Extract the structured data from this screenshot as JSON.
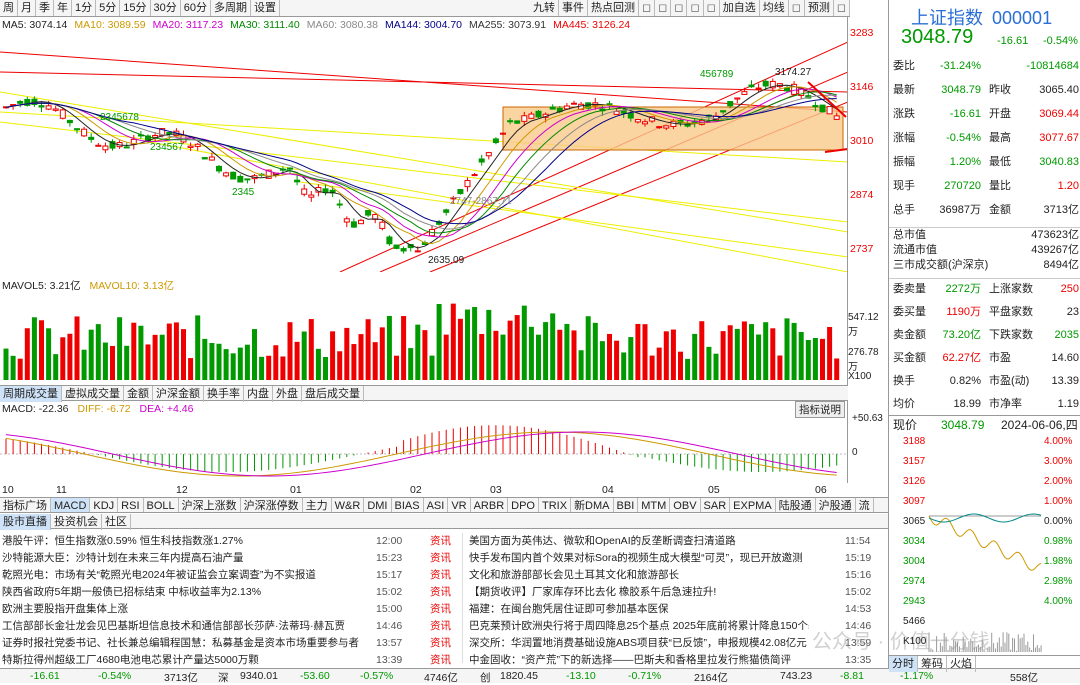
{
  "top_tabs": [
    "周",
    "月",
    "季",
    "年",
    "1分",
    "5分",
    "15分",
    "30分",
    "60分",
    "多周期",
    "设置"
  ],
  "right_tools": [
    "九转",
    "事件",
    "热点回测",
    "",
    "",
    "",
    "",
    "",
    "加自选",
    "均线",
    "",
    "预测",
    ""
  ],
  "ma_line": [
    {
      "label": "MA5: 3074.14",
      "color": "#222"
    },
    {
      "label": "MA10: 3089.59",
      "color": "#c90"
    },
    {
      "label": "MA20: 3117.23",
      "color": "#c0c"
    },
    {
      "label": "MA30: 3111.40",
      "color": "#080"
    },
    {
      "label": "MA60: 3080.38",
      "color": "#888"
    },
    {
      "label": "MA144: 3004.70",
      "color": "#008"
    },
    {
      "label": "MA255: 3073.91",
      "color": "#333"
    },
    {
      "label": "MA445: 3126.24",
      "color": "#e00"
    }
  ],
  "price_axis": [
    "3283",
    "3146",
    "3010",
    "2874",
    "2737"
  ],
  "chart_labels": {
    "high": "3174.27",
    "low": "2635.09",
    "mid": "2747-2867.71",
    "seq_labels": [
      "2345678",
      "234567",
      "3456",
      "2345",
      "456789",
      "12"
    ]
  },
  "vol_header": {
    "mavol5": "MAVOL5: 3.21亿",
    "mavol10": "MAVOL10: 3.13亿"
  },
  "vol_axis": [
    "547.12万",
    "276.78万",
    "X100"
  ],
  "ind_tabs1": [
    "周期成交量",
    "虚拟成交量",
    "金额",
    "沪深金额",
    "换手率",
    "内盘",
    "外盘",
    "盘后成交量"
  ],
  "macd_header": {
    "macd": "MACD: -22.36",
    "diff": "DIFF: -6.72",
    "dea": "DEA: +4.46",
    "btn": "指标说明"
  },
  "macd_axis": [
    "+50.63",
    "0"
  ],
  "x_labels": [
    "10",
    "11",
    "12",
    "01",
    "02",
    "03",
    "04",
    "05",
    "06"
  ],
  "ind_tabs2": [
    "指标广场",
    "MACD",
    "KDJ",
    "RSI",
    "BOLL",
    "沪深上涨数",
    "沪深涨停数",
    "主力",
    "W&R",
    "DMI",
    "BIAS",
    "ASI",
    "VR",
    "ARBR",
    "DPO",
    "TRIX",
    "新DMA",
    "BBI",
    "MTM",
    "OBV",
    "SAR",
    "EXPMA",
    "陆股通",
    "沪股通",
    "流"
  ],
  "news_tabs": [
    "股市直播",
    "投资机会",
    "社区"
  ],
  "news_left": [
    {
      "t": "港股午评：恒生指数涨0.59% 恒生科技指数涨1.27%",
      "time": "12:00",
      "tag": "资讯"
    },
    {
      "t": "沙特能源大臣：沙特计划在未来三年内提高石油产量",
      "time": "15:23",
      "tag": "资讯"
    },
    {
      "t": "乾照光电：市场有关“乾照光电2024年被证监会立案调查”为不实报道",
      "time": "15:17",
      "tag": "资讯"
    },
    {
      "t": "陕西省政府5年期一般债已招标结束 中标收益率为2.13%",
      "time": "15:02",
      "tag": "资讯"
    },
    {
      "t": "欧洲主要股指开盘集体上涨",
      "time": "15:00",
      "tag": "资讯"
    },
    {
      "t": "工信部部长金壮龙会见巴基斯坦信息技术和通信部部长莎萨·法蒂玛·赫瓦贾",
      "time": "14:46",
      "tag": "资讯"
    },
    {
      "t": "证券时报社党委书记、社长兼总编辑程国慧：私募基金是资本市场重要参与者",
      "time": "13:57",
      "tag": "资讯"
    },
    {
      "t": "特斯拉得州超级工厂4680电池电芯累计产量达5000万颗",
      "time": "13:39",
      "tag": "资讯"
    }
  ],
  "news_right": [
    {
      "t": "美国方面为英伟达、微软和OpenAI的反垄断调查扫清道路",
      "time": "11:54"
    },
    {
      "t": "快手发布国内首个效果对标Sora的视频生成大模型“可灵”，现已开放邀测",
      "time": "15:19"
    },
    {
      "t": "文化和旅游部部长会见土耳其文化和旅游部长",
      "time": "15:16"
    },
    {
      "t": "【期货收评】厂家库存环比去化 橡胶系午后急速拉升!",
      "time": "15:02"
    },
    {
      "t": "福建：在闽台胞凭居住证即可参加基本医保",
      "time": "14:53"
    },
    {
      "t": "巴克莱预计欧洲央行将于周四降息25个基点 2025年底前将累计降息150个基点",
      "time": "14:46"
    },
    {
      "t": "深交所：华润置地消费基础设施ABS项目获“已反馈”，申报规模42.08亿元",
      "time": "13:59"
    },
    {
      "t": "中金固收：“资产荒”下的新选择——巴斯夫和香格里拉发行熊猫债简评",
      "time": "13:35"
    }
  ],
  "status_bar": [
    "-16.61",
    "-0.54%",
    "3713亿",
    "深",
    "9340.01",
    "-53.60",
    "-0.57%",
    "4746亿",
    "创",
    "1820.45",
    "-13.10",
    "-0.71%",
    "2164亿",
    "",
    "743.23",
    "-8.81",
    "-1.17%",
    "558亿"
  ],
  "quote": {
    "name": "上证指数",
    "code": "000001",
    "price": "3048.79",
    "chg": "-16.61",
    "pct": "-0.54%",
    "rows": [
      [
        {
          "l": "委比",
          "v": "-31.24%",
          "c": "green"
        },
        {
          "l": "",
          "v": "-10814684",
          "c": "green"
        }
      ],
      [
        {
          "l": "最新",
          "v": "3048.79",
          "c": "green"
        },
        {
          "l": "昨收",
          "v": "3065.40",
          "c": "k"
        }
      ],
      [
        {
          "l": "涨跌",
          "v": "-16.61",
          "c": "green"
        },
        {
          "l": "开盘",
          "v": "3069.44",
          "c": "red"
        }
      ],
      [
        {
          "l": "涨幅",
          "v": "-0.54%",
          "c": "green"
        },
        {
          "l": "最高",
          "v": "3077.67",
          "c": "red"
        }
      ],
      [
        {
          "l": "振幅",
          "v": "1.20%",
          "c": "green"
        },
        {
          "l": "最低",
          "v": "3040.83",
          "c": "green"
        }
      ],
      [
        {
          "l": "现手",
          "v": "270720",
          "c": "green"
        },
        {
          "l": "量比",
          "v": "1.20",
          "c": "red"
        }
      ],
      [
        {
          "l": "总手",
          "v": "36987万",
          "c": "k"
        },
        {
          "l": "金额",
          "v": "3713亿",
          "c": "k"
        }
      ]
    ],
    "market": [
      {
        "l": "总市值",
        "v": "473623亿"
      },
      {
        "l": "流通市值",
        "v": "439267亿"
      },
      {
        "l": "三市成交额(沪深京)",
        "v": "8494亿"
      }
    ],
    "rows2": [
      [
        {
          "l": "委卖量",
          "v": "2272万",
          "c": "green"
        },
        {
          "l": "上涨家数",
          "v": "250",
          "c": "red"
        }
      ],
      [
        {
          "l": "委买量",
          "v": "1190万",
          "c": "red"
        },
        {
          "l": "平盘家数",
          "v": "23",
          "c": "k"
        }
      ],
      [
        {
          "l": "卖金额",
          "v": "73.20亿",
          "c": "green"
        },
        {
          "l": "下跌家数",
          "v": "2035",
          "c": "green"
        }
      ],
      [
        {
          "l": "买金额",
          "v": "62.27亿",
          "c": "red"
        },
        {
          "l": "市盈",
          "v": "14.60",
          "c": "k"
        }
      ],
      [
        {
          "l": "换手",
          "v": "0.82%",
          "c": "k"
        },
        {
          "l": "市盈(动)",
          "v": "13.39",
          "c": "k"
        }
      ],
      [
        {
          "l": "均价",
          "v": "18.99",
          "c": "k"
        },
        {
          "l": "市净率",
          "v": "1.19",
          "c": "k"
        }
      ]
    ],
    "mini_header": {
      "label": "现价",
      "price": "3048.79",
      "date": "2024-06-06,四"
    },
    "mini_left": [
      "3188",
      "3157",
      "3126",
      "3097",
      "3065",
      "3034",
      "3004",
      "2974",
      "2943",
      "5466",
      "K100"
    ],
    "mini_right": [
      "4.00%",
      "3.00%",
      "2.00%",
      "1.00%",
      "0.00%",
      "0.98%",
      "1.98%",
      "2.98%",
      "4.00%"
    ],
    "mini_tabs": [
      "分时",
      "筹码",
      "火焰"
    ]
  },
  "watermark": "公众号 · 价值一分钱"
}
